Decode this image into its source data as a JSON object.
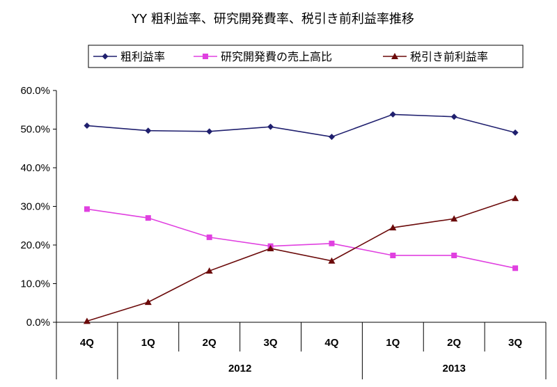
{
  "chart_data": {
    "type": "line",
    "title": "YY 粗利益率、研究開発費率、税引き前利益率推移",
    "categories": [
      "4Q",
      "1Q",
      "2Q",
      "3Q",
      "4Q",
      "1Q",
      "2Q",
      "3Q"
    ],
    "groups": [
      {
        "label": "2012",
        "from": 1,
        "to": 4
      },
      {
        "label": "2013",
        "from": 5,
        "to": 7
      }
    ],
    "yticks": [
      "0.0%",
      "10.0%",
      "20.0%",
      "30.0%",
      "40.0%",
      "50.0%",
      "60.0%"
    ],
    "ylim": [
      0,
      60
    ],
    "grid": false,
    "legend": "top",
    "series": [
      {
        "name": "粗利益率",
        "color": "#1F1F6E",
        "marker": "diamond",
        "values": [
          50.9,
          49.6,
          49.4,
          50.6,
          48.0,
          53.8,
          53.2,
          49.1
        ]
      },
      {
        "name": "研究開発費の売上高比",
        "color": "#E040E0",
        "marker": "square",
        "values": [
          29.3,
          27.0,
          22.0,
          19.7,
          20.4,
          17.3,
          17.3,
          14.0
        ]
      },
      {
        "name": "税引き前利益率",
        "color": "#6B0A0A",
        "marker": "triangle",
        "values": [
          0.3,
          5.2,
          13.3,
          19.1,
          15.9,
          24.5,
          26.8,
          32.1
        ]
      }
    ]
  }
}
